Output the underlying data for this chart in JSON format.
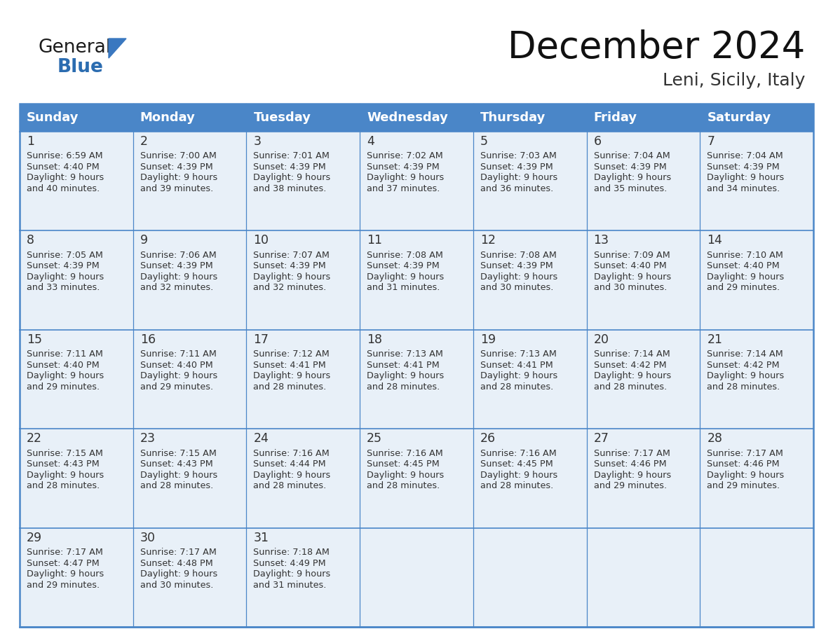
{
  "title": "December 2024",
  "subtitle": "Leni, Sicily, Italy",
  "header_color": "#4a86c8",
  "header_text_color": "#ffffff",
  "day_names": [
    "Sunday",
    "Monday",
    "Tuesday",
    "Wednesday",
    "Thursday",
    "Friday",
    "Saturday"
  ],
  "cell_bg_color": "#e8f0f8",
  "border_color": "#4a86c8",
  "text_color": "#333333",
  "days": [
    {
      "day": 1,
      "col": 0,
      "row": 0,
      "sunrise": "6:59 AM",
      "sunset": "4:40 PM",
      "daylight_mins": "40 minutes."
    },
    {
      "day": 2,
      "col": 1,
      "row": 0,
      "sunrise": "7:00 AM",
      "sunset": "4:39 PM",
      "daylight_mins": "39 minutes."
    },
    {
      "day": 3,
      "col": 2,
      "row": 0,
      "sunrise": "7:01 AM",
      "sunset": "4:39 PM",
      "daylight_mins": "38 minutes."
    },
    {
      "day": 4,
      "col": 3,
      "row": 0,
      "sunrise": "7:02 AM",
      "sunset": "4:39 PM",
      "daylight_mins": "37 minutes."
    },
    {
      "day": 5,
      "col": 4,
      "row": 0,
      "sunrise": "7:03 AM",
      "sunset": "4:39 PM",
      "daylight_mins": "36 minutes."
    },
    {
      "day": 6,
      "col": 5,
      "row": 0,
      "sunrise": "7:04 AM",
      "sunset": "4:39 PM",
      "daylight_mins": "35 minutes."
    },
    {
      "day": 7,
      "col": 6,
      "row": 0,
      "sunrise": "7:04 AM",
      "sunset": "4:39 PM",
      "daylight_mins": "34 minutes."
    },
    {
      "day": 8,
      "col": 0,
      "row": 1,
      "sunrise": "7:05 AM",
      "sunset": "4:39 PM",
      "daylight_mins": "33 minutes."
    },
    {
      "day": 9,
      "col": 1,
      "row": 1,
      "sunrise": "7:06 AM",
      "sunset": "4:39 PM",
      "daylight_mins": "32 minutes."
    },
    {
      "day": 10,
      "col": 2,
      "row": 1,
      "sunrise": "7:07 AM",
      "sunset": "4:39 PM",
      "daylight_mins": "32 minutes."
    },
    {
      "day": 11,
      "col": 3,
      "row": 1,
      "sunrise": "7:08 AM",
      "sunset": "4:39 PM",
      "daylight_mins": "31 minutes."
    },
    {
      "day": 12,
      "col": 4,
      "row": 1,
      "sunrise": "7:08 AM",
      "sunset": "4:39 PM",
      "daylight_mins": "30 minutes."
    },
    {
      "day": 13,
      "col": 5,
      "row": 1,
      "sunrise": "7:09 AM",
      "sunset": "4:40 PM",
      "daylight_mins": "30 minutes."
    },
    {
      "day": 14,
      "col": 6,
      "row": 1,
      "sunrise": "7:10 AM",
      "sunset": "4:40 PM",
      "daylight_mins": "29 minutes."
    },
    {
      "day": 15,
      "col": 0,
      "row": 2,
      "sunrise": "7:11 AM",
      "sunset": "4:40 PM",
      "daylight_mins": "29 minutes."
    },
    {
      "day": 16,
      "col": 1,
      "row": 2,
      "sunrise": "7:11 AM",
      "sunset": "4:40 PM",
      "daylight_mins": "29 minutes."
    },
    {
      "day": 17,
      "col": 2,
      "row": 2,
      "sunrise": "7:12 AM",
      "sunset": "4:41 PM",
      "daylight_mins": "28 minutes."
    },
    {
      "day": 18,
      "col": 3,
      "row": 2,
      "sunrise": "7:13 AM",
      "sunset": "4:41 PM",
      "daylight_mins": "28 minutes."
    },
    {
      "day": 19,
      "col": 4,
      "row": 2,
      "sunrise": "7:13 AM",
      "sunset": "4:41 PM",
      "daylight_mins": "28 minutes."
    },
    {
      "day": 20,
      "col": 5,
      "row": 2,
      "sunrise": "7:14 AM",
      "sunset": "4:42 PM",
      "daylight_mins": "28 minutes."
    },
    {
      "day": 21,
      "col": 6,
      "row": 2,
      "sunrise": "7:14 AM",
      "sunset": "4:42 PM",
      "daylight_mins": "28 minutes."
    },
    {
      "day": 22,
      "col": 0,
      "row": 3,
      "sunrise": "7:15 AM",
      "sunset": "4:43 PM",
      "daylight_mins": "28 minutes."
    },
    {
      "day": 23,
      "col": 1,
      "row": 3,
      "sunrise": "7:15 AM",
      "sunset": "4:43 PM",
      "daylight_mins": "28 minutes."
    },
    {
      "day": 24,
      "col": 2,
      "row": 3,
      "sunrise": "7:16 AM",
      "sunset": "4:44 PM",
      "daylight_mins": "28 minutes."
    },
    {
      "day": 25,
      "col": 3,
      "row": 3,
      "sunrise": "7:16 AM",
      "sunset": "4:45 PM",
      "daylight_mins": "28 minutes."
    },
    {
      "day": 26,
      "col": 4,
      "row": 3,
      "sunrise": "7:16 AM",
      "sunset": "4:45 PM",
      "daylight_mins": "28 minutes."
    },
    {
      "day": 27,
      "col": 5,
      "row": 3,
      "sunrise": "7:17 AM",
      "sunset": "4:46 PM",
      "daylight_mins": "29 minutes."
    },
    {
      "day": 28,
      "col": 6,
      "row": 3,
      "sunrise": "7:17 AM",
      "sunset": "4:46 PM",
      "daylight_mins": "29 minutes."
    },
    {
      "day": 29,
      "col": 0,
      "row": 4,
      "sunrise": "7:17 AM",
      "sunset": "4:47 PM",
      "daylight_mins": "29 minutes."
    },
    {
      "day": 30,
      "col": 1,
      "row": 4,
      "sunrise": "7:17 AM",
      "sunset": "4:48 PM",
      "daylight_mins": "30 minutes."
    },
    {
      "day": 31,
      "col": 2,
      "row": 4,
      "sunrise": "7:18 AM",
      "sunset": "4:49 PM",
      "daylight_mins": "31 minutes."
    }
  ],
  "logo_color_general": "#1a1a1a",
  "logo_color_blue": "#2b6cb0"
}
